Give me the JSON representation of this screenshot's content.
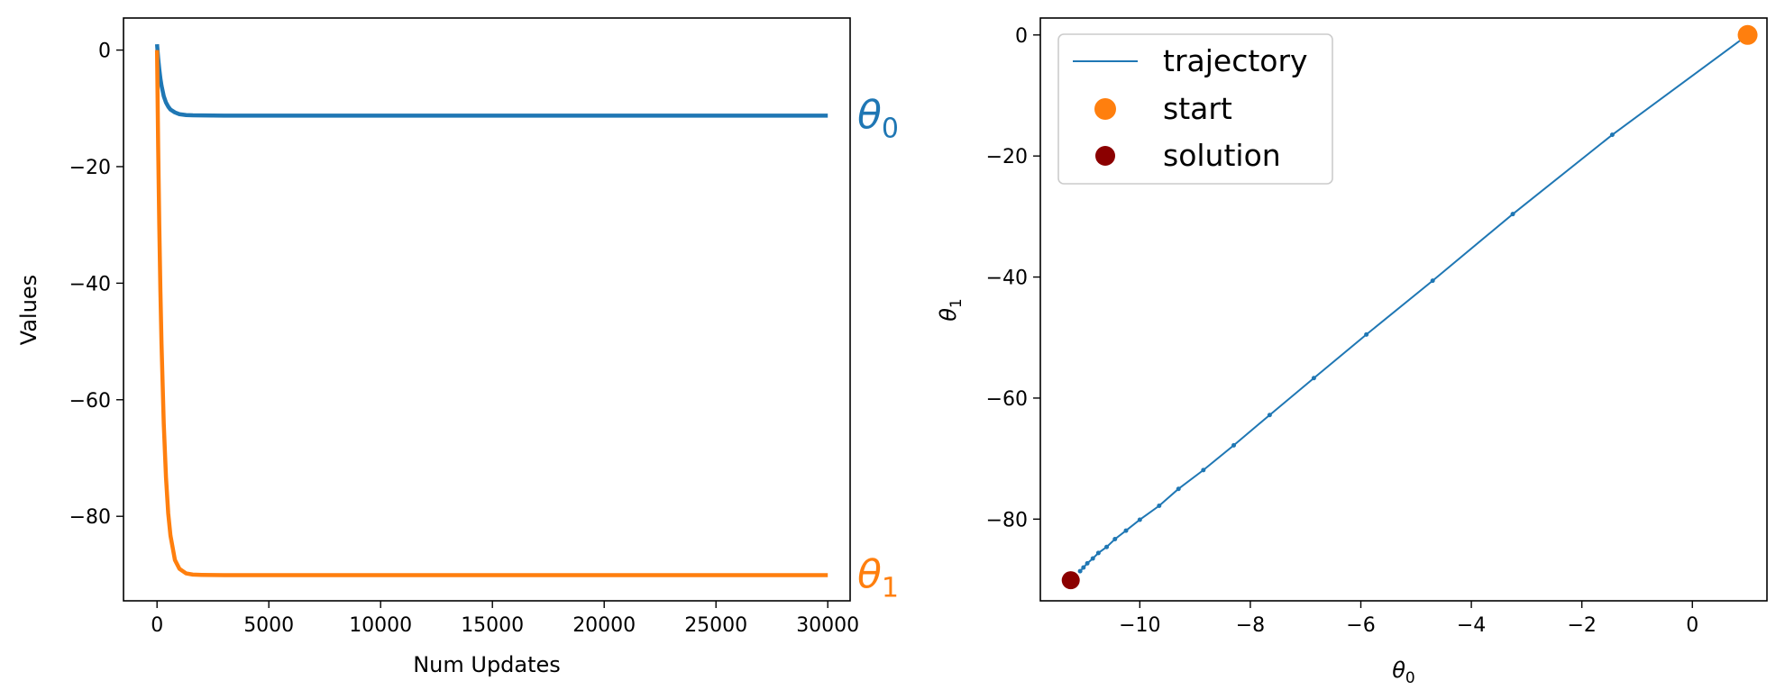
{
  "chart_data": [
    {
      "type": "line",
      "xlabel": "Num Updates",
      "ylabel": "Values",
      "xlim": [
        -1500,
        31000
      ],
      "ylim": [
        -94.5,
        5.5
      ],
      "xticks": [
        0,
        5000,
        10000,
        15000,
        20000,
        25000,
        30000
      ],
      "xtick_labels": [
        "0",
        "5000",
        "10000",
        "15000",
        "20000",
        "25000",
        "30000"
      ],
      "yticks": [
        0,
        -20,
        -40,
        -60,
        -80
      ],
      "ytick_labels": [
        "0",
        "−20",
        "−40",
        "−60",
        "−80"
      ],
      "grid": false,
      "series": [
        {
          "name": "θ0",
          "color": "#1f77b4",
          "x": [
            0,
            50,
            100,
            150,
            200,
            300,
            400,
            500,
            600,
            800,
            1000,
            1300,
            1600,
            2000,
            3000,
            5000,
            10000,
            15000,
            20000,
            25000,
            30000
          ],
          "y": [
            1.0,
            -1.4,
            -3.3,
            -4.9,
            -6.1,
            -7.9,
            -9.0,
            -9.7,
            -10.2,
            -10.7,
            -11.0,
            -11.15,
            -11.2,
            -11.22,
            -11.25,
            -11.25,
            -11.25,
            -11.25,
            -11.25,
            -11.25,
            -11.25
          ]
        },
        {
          "name": "θ1",
          "color": "#ff7f0e",
          "x": [
            0,
            50,
            100,
            150,
            200,
            300,
            400,
            500,
            600,
            800,
            1000,
            1300,
            1600,
            2000,
            3000,
            5000,
            10000,
            15000,
            20000,
            25000,
            30000
          ],
          "y": [
            0.0,
            -16.5,
            -30.1,
            -41.3,
            -50.4,
            -64.1,
            -73.3,
            -79.5,
            -83.3,
            -87.5,
            -89.0,
            -89.8,
            -90.0,
            -90.05,
            -90.1,
            -90.1,
            -90.1,
            -90.1,
            -90.1,
            -90.1,
            -90.1
          ]
        }
      ]
    },
    {
      "type": "line",
      "xlabel": "θ0",
      "ylabel": "θ1",
      "xlim": [
        -11.8,
        1.35
      ],
      "ylim": [
        -93.5,
        2.8
      ],
      "xticks": [
        -10,
        -8,
        -6,
        -4,
        -2,
        0
      ],
      "xtick_labels": [
        "−10",
        "−8",
        "−6",
        "−4",
        "−2",
        "0"
      ],
      "yticks": [
        0,
        -20,
        -40,
        -60,
        -80
      ],
      "ytick_labels": [
        "0",
        "−20",
        "−40",
        "−60",
        "−80"
      ],
      "grid": false,
      "legend": {
        "placement": "top-left",
        "entries": [
          {
            "label": "trajectory",
            "kind": "line",
            "color": "#1f77b4"
          },
          {
            "label": "start",
            "kind": "marker",
            "color": "#ff7f0e"
          },
          {
            "label": "solution",
            "kind": "marker",
            "color": "#8b0000"
          }
        ]
      },
      "trajectory": {
        "color": "#1f77b4",
        "theta0": [
          1.0,
          -1.45,
          -3.25,
          -4.7,
          -5.9,
          -6.85,
          -7.65,
          -8.3,
          -8.85,
          -9.3,
          -9.65,
          -10.0,
          -10.25,
          -10.45,
          -10.6,
          -10.75,
          -10.85,
          -10.95,
          -11.02,
          -11.08
        ],
        "theta1": [
          0.0,
          -16.5,
          -29.6,
          -40.6,
          -49.5,
          -56.7,
          -62.8,
          -67.8,
          -71.9,
          -75.0,
          -77.8,
          -80.1,
          -81.9,
          -83.3,
          -84.6,
          -85.6,
          -86.5,
          -87.3,
          -88.0,
          -88.6
        ]
      },
      "start": {
        "theta0": 1.0,
        "theta1": 0.0,
        "color": "#ff7f0e"
      },
      "solution": {
        "theta0": -11.25,
        "theta1": -90.1,
        "color": "#8b0000"
      }
    }
  ]
}
